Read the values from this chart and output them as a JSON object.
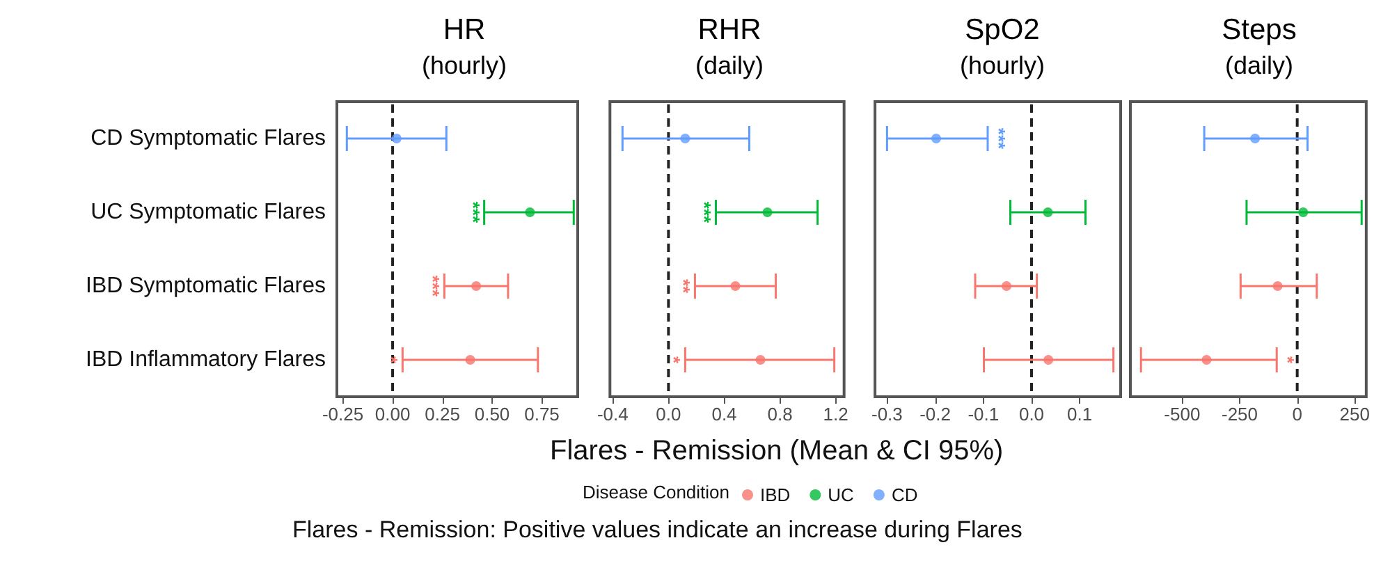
{
  "chart_data": [
    {
      "type": "scatter",
      "title": "HR",
      "subtitle": "(hourly)",
      "xlabel": "Flares - Remission (Mean & CI 95%)",
      "legend_title": "Disease Condition",
      "legend": "bottom",
      "marker": "circle",
      "grid": false,
      "orientation": "horizontal",
      "categories": [
        "CD Symptomatic Flares",
        "UC Symptomatic Flares",
        "IBD Symptomatic Flares",
        "IBD Inflammatory Flares"
      ],
      "xlim": [
        -0.28,
        0.93
      ],
      "xticks": [
        {
          "value": -0.25,
          "label": "-0.25"
        },
        {
          "value": 0,
          "label": "0.00"
        },
        {
          "value": 0.25,
          "label": "0.25"
        },
        {
          "value": 0.5,
          "label": "0.50"
        },
        {
          "value": 0.75,
          "label": "0.75"
        }
      ],
      "ref_lines": [
        {
          "axis": "x",
          "value": 0,
          "color": "#222222",
          "line_style": "dashed"
        }
      ],
      "series": [
        {
          "name": "IBD",
          "color": "#f8766d",
          "values": [
            null,
            null,
            0.42,
            0.39
          ],
          "errors": [
            null,
            null,
            [
              0.26,
              0.58
            ],
            [
              0.05,
              0.73
            ]
          ]
        },
        {
          "name": "UC",
          "color": "#00ba38",
          "values": [
            null,
            0.69,
            null,
            null
          ],
          "errors": [
            null,
            [
              0.46,
              0.91
            ],
            null,
            null
          ]
        },
        {
          "name": "CD",
          "color": "#619cff",
          "values": [
            0.02,
            null,
            null,
            null
          ],
          "errors": [
            [
              -0.23,
              0.27
            ],
            null,
            null,
            null
          ]
        }
      ],
      "annotations": [
        {
          "text": "***",
          "x": 0.46,
          "y": "UC Symptomatic Flares"
        },
        {
          "text": "***",
          "x": 0.26,
          "y": "IBD Symptomatic Flares"
        },
        {
          "text": "*",
          "x": 0.05,
          "y": "IBD Inflammatory Flares"
        },
        "Flares - Remission: Positive values indicate an increase during Flares"
      ]
    },
    {
      "type": "scatter",
      "title": "RHR",
      "subtitle": "(daily)",
      "marker": "circle",
      "grid": false,
      "orientation": "horizontal",
      "tick_labels": "x",
      "categories": [
        "CD Symptomatic Flares",
        "UC Symptomatic Flares",
        "IBD Symptomatic Flares",
        "IBD Inflammatory Flares"
      ],
      "xlim": [
        -0.42,
        1.26
      ],
      "xticks": [
        -0.4,
        {
          "value": 0,
          "label": "0.0"
        },
        0.4,
        0.8,
        1.2
      ],
      "ref_lines": [
        {
          "axis": "x",
          "value": 0,
          "color": "#222222",
          "line_style": "dashed"
        }
      ],
      "series": [
        {
          "color": "#f8766d",
          "values": [
            null,
            null,
            0.48,
            0.66
          ],
          "errors": [
            null,
            null,
            [
              0.19,
              0.77
            ],
            [
              0.12,
              1.19
            ]
          ]
        },
        {
          "color": "#00ba38",
          "values": [
            null,
            0.71,
            null,
            null
          ],
          "errors": [
            null,
            [
              0.34,
              1.07
            ],
            null,
            null
          ]
        },
        {
          "color": "#619cff",
          "values": [
            0.12,
            null,
            null,
            null
          ],
          "errors": [
            [
              -0.33,
              0.58
            ],
            null,
            null,
            null
          ]
        }
      ],
      "annotations": [
        {
          "text": "***",
          "x": 0.34,
          "y": "UC Symptomatic Flares"
        },
        {
          "text": "**",
          "x": 0.19,
          "y": "IBD Symptomatic Flares"
        },
        {
          "text": "*",
          "x": 0.12,
          "y": "IBD Inflammatory Flares"
        }
      ]
    },
    {
      "type": "scatter",
      "title": "SpO2",
      "subtitle": "(hourly)",
      "marker": "circle",
      "grid": false,
      "orientation": "horizontal",
      "tick_labels": "x",
      "categories": [
        "CD Symptomatic Flares",
        "UC Symptomatic Flares",
        "IBD Symptomatic Flares",
        "IBD Inflammatory Flares"
      ],
      "xlim": [
        -0.325,
        0.185
      ],
      "xticks": [
        -0.3,
        -0.2,
        -0.1,
        {
          "value": 0,
          "label": "0.0"
        },
        0.1
      ],
      "ref_lines": [
        {
          "axis": "x",
          "value": 0,
          "color": "#222222",
          "line_style": "dashed"
        }
      ],
      "series": [
        {
          "color": "#f8766d",
          "values": [
            null,
            null,
            -0.052,
            0.035
          ],
          "errors": [
            null,
            null,
            [
              -0.117,
              0.011
            ],
            [
              -0.099,
              0.17
            ]
          ]
        },
        {
          "color": "#00ba38",
          "values": [
            null,
            0.034,
            null,
            null
          ],
          "errors": [
            null,
            [
              -0.044,
              0.112
            ],
            null,
            null
          ]
        },
        {
          "color": "#619cff",
          "values": [
            -0.198,
            null,
            null,
            null
          ],
          "errors": [
            [
              -0.3,
              -0.091
            ],
            null,
            null,
            null
          ]
        }
      ],
      "annotations": [
        {
          "text": "***",
          "x": -0.091,
          "y": "CD Symptomatic Flares"
        }
      ]
    },
    {
      "type": "scatter",
      "title": "Steps",
      "subtitle": "(daily)",
      "marker": "circle",
      "grid": false,
      "orientation": "horizontal",
      "tick_labels": "x",
      "categories": [
        "CD Symptomatic Flares",
        "UC Symptomatic Flares",
        "IBD Symptomatic Flares",
        "IBD Inflammatory Flares"
      ],
      "xlim": [
        -725,
        300
      ],
      "xticks": [
        -500,
        -250,
        0,
        250
      ],
      "ref_lines": [
        {
          "axis": "x",
          "value": 0,
          "color": "#222222",
          "line_style": "dashed"
        }
      ],
      "series": [
        {
          "color": "#f8766d",
          "values": [
            null,
            null,
            -85,
            -394
          ],
          "errors": [
            null,
            null,
            [
              -246,
              85
            ],
            [
              -679,
              -89
            ]
          ]
        },
        {
          "color": "#00ba38",
          "values": [
            null,
            26,
            null,
            null
          ],
          "errors": [
            null,
            [
              -220,
              280
            ],
            null,
            null
          ]
        },
        {
          "color": "#619cff",
          "values": [
            -183,
            null,
            null,
            null
          ],
          "errors": [
            [
              -404,
              45
            ],
            null,
            null,
            null
          ]
        }
      ],
      "annotations": [
        {
          "text": "*",
          "x": -89,
          "y": "IBD Inflammatory Flares"
        }
      ]
    }
  ]
}
